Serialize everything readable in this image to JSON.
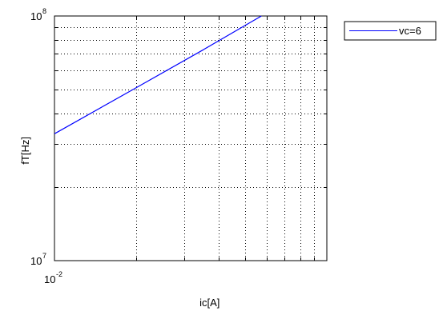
{
  "chart_data": {
    "type": "line",
    "title": "",
    "xlabel": "ic[A]",
    "ylabel": "fT[Hz]",
    "xscale": "log",
    "yscale": "log",
    "xlim": [
      0.01,
      0.1
    ],
    "ylim": [
      10000000,
      100000000
    ],
    "grid": true,
    "legend_position": "outside-top-right",
    "x_tick_labels": [
      {
        "value": 0.01,
        "base": "10",
        "exp": "-2"
      }
    ],
    "y_tick_labels": [
      {
        "value": 10000000,
        "base": "10",
        "exp": "7"
      },
      {
        "value": 100000000,
        "base": "10",
        "exp": "8"
      }
    ],
    "series": [
      {
        "name": "vc=6",
        "color": "#0000ff",
        "x": [
          0.01,
          0.02,
          0.035,
          0.0575
        ],
        "y": [
          33000000,
          51000000,
          72500000,
          100000000
        ]
      }
    ]
  }
}
